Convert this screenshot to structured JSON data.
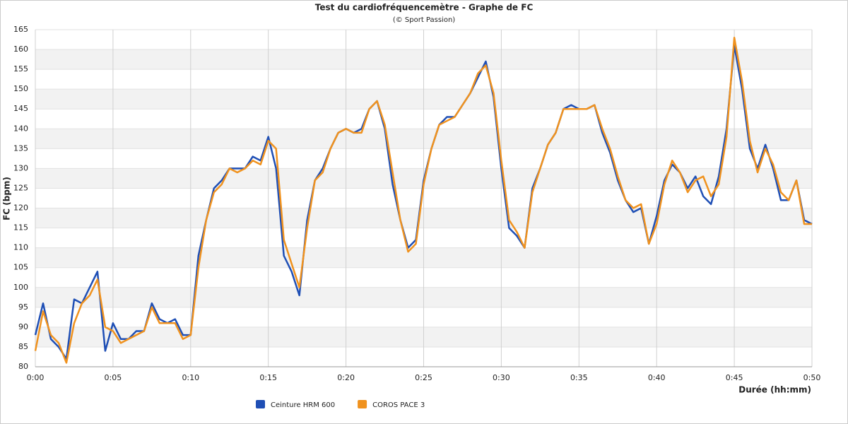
{
  "chart_data": {
    "type": "line",
    "title": "Test du cardiofréquencemètre - Graphe de FC",
    "subtitle": "(© Sport Passion)",
    "y_label": "FC (bpm)",
    "x_label": "Durée (hh:mm)",
    "x": [
      0,
      0.5,
      1,
      1.5,
      2,
      2.5,
      3,
      3.5,
      4,
      4.5,
      5,
      5.5,
      6,
      6.5,
      7,
      7.5,
      8,
      8.5,
      9,
      9.5,
      10,
      10.5,
      11,
      11.5,
      12,
      12.5,
      13,
      13.5,
      14,
      14.5,
      15,
      15.5,
      16,
      16.5,
      17,
      17.5,
      18,
      18.5,
      19,
      19.5,
      20,
      20.5,
      21,
      21.5,
      22,
      22.5,
      23,
      23.5,
      24,
      24.5,
      25,
      25.5,
      26,
      26.5,
      27,
      27.5,
      28,
      28.5,
      29,
      29.5,
      30,
      30.5,
      31,
      31.5,
      32,
      32.5,
      33,
      33.5,
      34,
      34.5,
      35,
      35.5,
      36,
      36.5,
      37,
      37.5,
      38,
      38.5,
      39,
      39.5,
      40,
      40.5,
      41,
      41.5,
      42,
      42.5,
      43,
      43.5,
      44,
      44.5,
      45,
      45.5,
      46,
      46.5,
      47,
      47.5,
      48,
      48.5,
      49,
      49.5,
      50
    ],
    "series": [
      {
        "name": "Ceinture HRM 600",
        "color": "#1f4fb5",
        "values": [
          88,
          96,
          87,
          85,
          82,
          97,
          96,
          100,
          104,
          84,
          91,
          87,
          87,
          89,
          89,
          96,
          92,
          91,
          92,
          88,
          88,
          108,
          117,
          125,
          127,
          130,
          130,
          130,
          133,
          132,
          138,
          130,
          108,
          104,
          98,
          117,
          127,
          130,
          135,
          139,
          140,
          139,
          140,
          145,
          147,
          140,
          126,
          117,
          110,
          112,
          127,
          135,
          141,
          143,
          143,
          146,
          149,
          153,
          157,
          148,
          130,
          115,
          113,
          110,
          125,
          130,
          136,
          139,
          145,
          146,
          145,
          145,
          146,
          139,
          134,
          127,
          122,
          119,
          120,
          111,
          118,
          127,
          131,
          129,
          125,
          128,
          123,
          121,
          128,
          140,
          161,
          150,
          135,
          130,
          136,
          130,
          122,
          122,
          127,
          117,
          116
        ]
      },
      {
        "name": "COROS PACE 3",
        "color": "#f0921e",
        "values": [
          84,
          94,
          88,
          86,
          81,
          91,
          96,
          98,
          102,
          90,
          89,
          86,
          87,
          88,
          89,
          95,
          91,
          91,
          91,
          87,
          88,
          105,
          117,
          124,
          126,
          130,
          129,
          130,
          132,
          131,
          137,
          135,
          112,
          106,
          100,
          115,
          127,
          129,
          135,
          139,
          140,
          139,
          139,
          145,
          147,
          141,
          129,
          117,
          109,
          111,
          126,
          135,
          141,
          142,
          143,
          146,
          149,
          154,
          156,
          149,
          132,
          117,
          114,
          110,
          124,
          130,
          136,
          139,
          145,
          145,
          145,
          145,
          146,
          140,
          135,
          128,
          122,
          120,
          121,
          111,
          116,
          126,
          132,
          129,
          124,
          127,
          128,
          123,
          126,
          138,
          163,
          152,
          137,
          129,
          135,
          131,
          124,
          122,
          127,
          116,
          116
        ]
      }
    ],
    "xlim": [
      0,
      50
    ],
    "xticks": [
      {
        "value": 0,
        "label": "0:00"
      },
      {
        "value": 5,
        "label": "0:05"
      },
      {
        "value": 10,
        "label": "0:10"
      },
      {
        "value": 15,
        "label": "0:15"
      },
      {
        "value": 20,
        "label": "0:20"
      },
      {
        "value": 25,
        "label": "0:25"
      },
      {
        "value": 30,
        "label": "0:30"
      },
      {
        "value": 35,
        "label": "0:35"
      },
      {
        "value": 40,
        "label": "0:40"
      },
      {
        "value": 45,
        "label": "0:45"
      },
      {
        "value": 50,
        "label": "0:50"
      }
    ],
    "ylim": [
      80,
      165
    ],
    "yticks": [
      80,
      85,
      90,
      95,
      100,
      105,
      110,
      115,
      120,
      125,
      130,
      135,
      140,
      145,
      150,
      155,
      160,
      165
    ],
    "grid": true,
    "legend": "bottom"
  }
}
